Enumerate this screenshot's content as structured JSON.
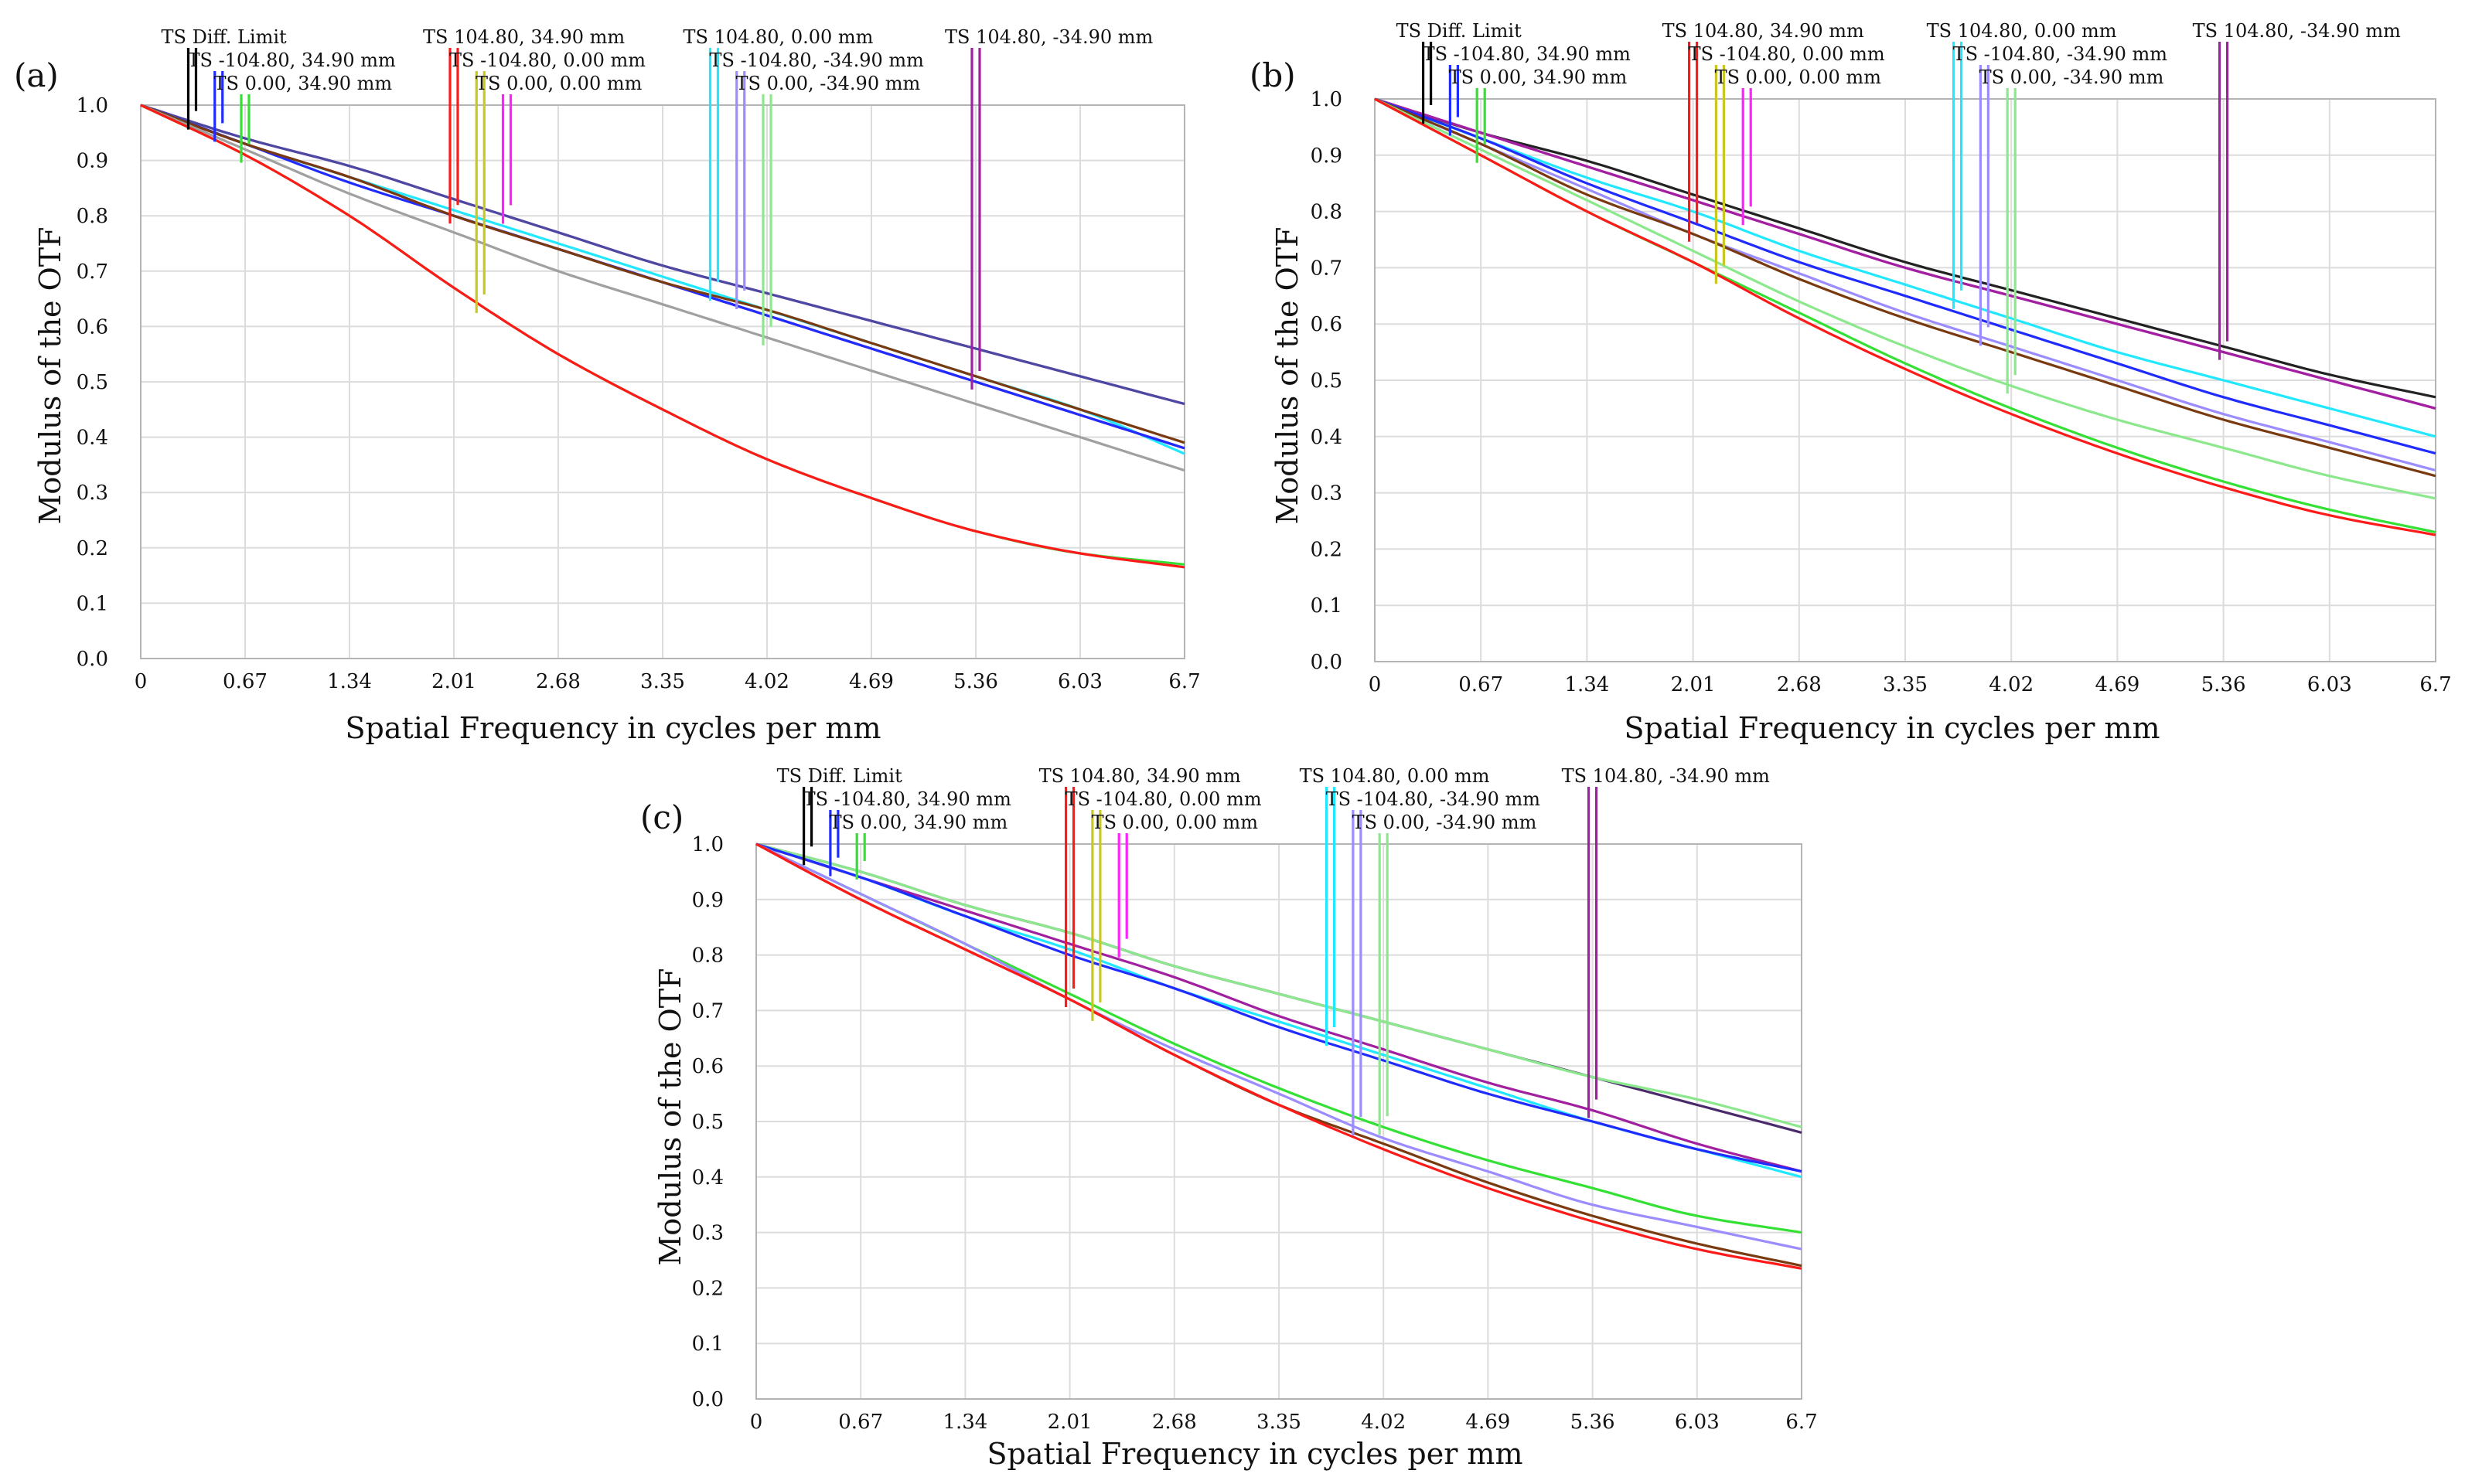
{
  "figure": {
    "xlabel": "Spatial Frequency in cycles per mm",
    "ylabel": "Modulus of the OTF"
  },
  "legend": [
    {
      "name": "TS Diff. Limit",
      "color": "#000000",
      "freq": 0.33
    },
    {
      "name": "TS -104.80, 34.90 mm",
      "color": "#1f2bff",
      "freq": 0.5
    },
    {
      "name": "TS 0.00, 34.90 mm",
      "color": "#35e035",
      "freq": 0.67
    },
    {
      "name": "TS 104.80, 34.90 mm",
      "color": "#ff1a1a",
      "freq": 2.01
    },
    {
      "name": "TS -104.80, 0.00 mm",
      "color": "#c8c820",
      "freq": 2.18
    },
    {
      "name": "TS 0.00, 0.00 mm",
      "color": "#ff22ff",
      "freq": 2.35
    },
    {
      "name": "TS 104.80, 0.00 mm",
      "color": "#22e8ff",
      "freq": 3.68
    },
    {
      "name": "TS -104.80, -34.90 mm",
      "color": "#9b8cff",
      "freq": 3.85
    },
    {
      "name": "TS 0.00, -34.90 mm",
      "color": "#8ce88c",
      "freq": 4.02
    },
    {
      "name": "TS 104.80, -34.90 mm",
      "color": "#a020a0",
      "freq": 5.36
    }
  ],
  "chart_data": [
    {
      "label": "(a)",
      "type": "line",
      "xlabel": "Spatial Frequency in cycles per mm",
      "ylabel": "Modulus of the OTF",
      "xlim": [
        0,
        6.7
      ],
      "ylim": [
        0,
        1.0
      ],
      "xticks": [
        "0",
        "0.67",
        "1.34",
        "2.01",
        "2.68",
        "3.35",
        "4.02",
        "4.69",
        "5.36",
        "6.03",
        "6.7"
      ],
      "yticks": [
        "0.0",
        "0.1",
        "0.2",
        "0.3",
        "0.4",
        "0.5",
        "0.6",
        "0.7",
        "0.8",
        "0.9",
        "1.0"
      ],
      "x": [
        0,
        0.67,
        1.34,
        2.01,
        2.68,
        3.35,
        4.02,
        4.69,
        5.36,
        6.03,
        6.7
      ],
      "series": [
        {
          "name": "TS 104.80, 0.00 mm",
          "color": "#22e8ff",
          "values": [
            1.0,
            0.93,
            0.87,
            0.81,
            0.75,
            0.69,
            0.63,
            0.57,
            0.51,
            0.45,
            0.37
          ]
        },
        {
          "name": "TS 0.00, 0.00 mm",
          "color": "#ff22ff",
          "values": [
            1.0,
            0.94,
            0.89,
            0.83,
            0.77,
            0.71,
            0.66,
            0.61,
            0.56,
            0.51,
            0.46
          ]
        },
        {
          "name": "TS Diff. Limit",
          "color": "#4a4aa0",
          "values": [
            1.0,
            0.94,
            0.89,
            0.83,
            0.77,
            0.71,
            0.66,
            0.61,
            0.56,
            0.51,
            0.46
          ]
        },
        {
          "name": "TS 104.80, -34.90 mm",
          "color": "#a020a0",
          "values": [
            1.0,
            0.93,
            0.87,
            0.8,
            0.74,
            0.68,
            0.62,
            0.56,
            0.5,
            0.44,
            0.38
          ]
        },
        {
          "name": "TS -104.80, 34.90 mm",
          "color": "#1f2bff",
          "values": [
            1.0,
            0.93,
            0.86,
            0.8,
            0.74,
            0.68,
            0.62,
            0.56,
            0.5,
            0.44,
            0.38
          ]
        },
        {
          "name": "TS 104.80, 34.90 mm",
          "color": "#7a3a10",
          "values": [
            1.0,
            0.93,
            0.87,
            0.8,
            0.74,
            0.68,
            0.63,
            0.57,
            0.51,
            0.45,
            0.39
          ]
        },
        {
          "name": "TS 0.00, -34.90 mm",
          "color": "#a0a0a0",
          "values": [
            1.0,
            0.92,
            0.84,
            0.77,
            0.7,
            0.64,
            0.58,
            0.52,
            0.46,
            0.4,
            0.34
          ]
        },
        {
          "name": "TS 0.00, 34.90 mm",
          "color": "#35e035",
          "values": [
            1.0,
            0.91,
            0.8,
            0.67,
            0.55,
            0.45,
            0.36,
            0.29,
            0.23,
            0.19,
            0.17
          ]
        },
        {
          "name": "TS -104.80, 0.00 mm",
          "color": "#ff1a1a",
          "values": [
            1.0,
            0.91,
            0.8,
            0.67,
            0.55,
            0.45,
            0.36,
            0.29,
            0.23,
            0.19,
            0.165
          ]
        }
      ]
    },
    {
      "label": "(b)",
      "type": "line",
      "xlabel": "Spatial Frequency in cycles per mm",
      "ylabel": "Modulus of the OTF",
      "xlim": [
        0,
        6.7
      ],
      "ylim": [
        0,
        1.0
      ],
      "xticks": [
        "0",
        "0.67",
        "1.34",
        "2.01",
        "2.68",
        "3.35",
        "4.02",
        "4.69",
        "5.36",
        "6.03",
        "6.7"
      ],
      "yticks": [
        "0.0",
        "0.1",
        "0.2",
        "0.3",
        "0.4",
        "0.5",
        "0.6",
        "0.7",
        "0.8",
        "0.9",
        "1.0"
      ],
      "x": [
        0,
        0.67,
        1.34,
        2.01,
        2.68,
        3.35,
        4.02,
        4.69,
        5.36,
        6.03,
        6.7
      ],
      "series": [
        {
          "name": "TS Diff. Limit",
          "color": "#222222",
          "values": [
            1.0,
            0.94,
            0.89,
            0.83,
            0.77,
            0.71,
            0.66,
            0.61,
            0.56,
            0.51,
            0.47
          ]
        },
        {
          "name": "TS 0.00, 0.00 mm",
          "color": "#ff22ff",
          "values": [
            1.0,
            0.94,
            0.88,
            0.82,
            0.76,
            0.7,
            0.65,
            0.6,
            0.55,
            0.5,
            0.45
          ]
        },
        {
          "name": "TS 104.80, -34.90 mm",
          "color": "#a020a0",
          "values": [
            1.0,
            0.94,
            0.88,
            0.82,
            0.76,
            0.7,
            0.65,
            0.6,
            0.55,
            0.5,
            0.45
          ]
        },
        {
          "name": "TS 104.80, 0.00 mm",
          "color": "#22e8ff",
          "values": [
            1.0,
            0.93,
            0.86,
            0.8,
            0.73,
            0.67,
            0.61,
            0.55,
            0.5,
            0.45,
            0.4
          ]
        },
        {
          "name": "TS -104.80, 34.90 mm",
          "color": "#1f2bff",
          "values": [
            1.0,
            0.93,
            0.85,
            0.78,
            0.71,
            0.65,
            0.59,
            0.53,
            0.47,
            0.42,
            0.37
          ]
        },
        {
          "name": "TS -104.80, -34.90 mm",
          "color": "#9b8cff",
          "values": [
            1.0,
            0.92,
            0.84,
            0.76,
            0.69,
            0.62,
            0.56,
            0.5,
            0.44,
            0.39,
            0.34
          ]
        },
        {
          "name": "TS 104.80, 34.90 mm",
          "color": "#7a3a10",
          "values": [
            1.0,
            0.92,
            0.83,
            0.76,
            0.68,
            0.61,
            0.55,
            0.49,
            0.43,
            0.38,
            0.33
          ]
        },
        {
          "name": "TS 0.00, -34.90 mm",
          "color": "#8ce88c",
          "values": [
            1.0,
            0.91,
            0.82,
            0.73,
            0.64,
            0.56,
            0.49,
            0.43,
            0.38,
            0.33,
            0.29
          ]
        },
        {
          "name": "TS 0.00, 34.90 mm",
          "color": "#35e035",
          "values": [
            1.0,
            0.9,
            0.8,
            0.71,
            0.62,
            0.53,
            0.45,
            0.38,
            0.32,
            0.27,
            0.23
          ]
        },
        {
          "name": "TS -104.80, 0.00 mm",
          "color": "#ff1a1a",
          "values": [
            1.0,
            0.9,
            0.8,
            0.71,
            0.61,
            0.52,
            0.44,
            0.37,
            0.31,
            0.26,
            0.225
          ]
        }
      ]
    },
    {
      "label": "(c)",
      "type": "line",
      "xlabel": "Spatial Frequency in cycles per mm",
      "ylabel": "Modulus of the OTF",
      "xlim": [
        0,
        6.7
      ],
      "ylim": [
        0,
        1.0
      ],
      "xticks": [
        "0",
        "0.67",
        "1.34",
        "2.01",
        "2.68",
        "3.35",
        "4.02",
        "4.69",
        "5.36",
        "6.03",
        "6.7"
      ],
      "yticks": [
        "0.0",
        "0.1",
        "0.2",
        "0.3",
        "0.4",
        "0.5",
        "0.6",
        "0.7",
        "0.8",
        "0.9",
        "1.0"
      ],
      "x": [
        0,
        0.67,
        1.34,
        2.01,
        2.68,
        3.35,
        4.02,
        4.69,
        5.36,
        6.03,
        6.7
      ],
      "series": [
        {
          "name": "TS Diff. Limit",
          "color": "#4a2a6a",
          "values": [
            1.0,
            0.95,
            0.89,
            0.84,
            0.78,
            0.73,
            0.68,
            0.63,
            0.58,
            0.53,
            0.48
          ]
        },
        {
          "name": "TS 0.00, 34.90 mm",
          "color": "#8ce88c",
          "values": [
            1.0,
            0.95,
            0.89,
            0.84,
            0.78,
            0.73,
            0.68,
            0.63,
            0.58,
            0.54,
            0.49
          ]
        },
        {
          "name": "TS 104.80, -34.90 mm",
          "color": "#a020a0",
          "values": [
            1.0,
            0.94,
            0.88,
            0.82,
            0.76,
            0.69,
            0.63,
            0.57,
            0.52,
            0.46,
            0.41
          ]
        },
        {
          "name": "TS 104.80, 0.00 mm",
          "color": "#22e8ff",
          "values": [
            1.0,
            0.94,
            0.87,
            0.81,
            0.74,
            0.68,
            0.62,
            0.56,
            0.5,
            0.45,
            0.4
          ]
        },
        {
          "name": "TS -104.80, 34.90 mm",
          "color": "#1f2bff",
          "values": [
            1.0,
            0.94,
            0.87,
            0.8,
            0.74,
            0.67,
            0.61,
            0.55,
            0.5,
            0.45,
            0.41
          ]
        },
        {
          "name": "TS 0.00, -34.90 mm",
          "color": "#35e035",
          "values": [
            1.0,
            0.91,
            0.82,
            0.73,
            0.64,
            0.56,
            0.49,
            0.43,
            0.38,
            0.33,
            0.3
          ]
        },
        {
          "name": "TS -104.80, -34.90 mm",
          "color": "#9b8cff",
          "values": [
            1.0,
            0.91,
            0.82,
            0.72,
            0.63,
            0.55,
            0.47,
            0.41,
            0.35,
            0.31,
            0.27
          ]
        },
        {
          "name": "TS 104.80, 34.90 mm",
          "color": "#7a3a10",
          "values": [
            1.0,
            0.9,
            0.81,
            0.72,
            0.62,
            0.53,
            0.46,
            0.39,
            0.33,
            0.28,
            0.24
          ]
        },
        {
          "name": "TS -104.80, 0.00 mm",
          "color": "#ff1a1a",
          "values": [
            1.0,
            0.9,
            0.81,
            0.72,
            0.62,
            0.53,
            0.45,
            0.38,
            0.32,
            0.27,
            0.235
          ]
        }
      ]
    }
  ]
}
